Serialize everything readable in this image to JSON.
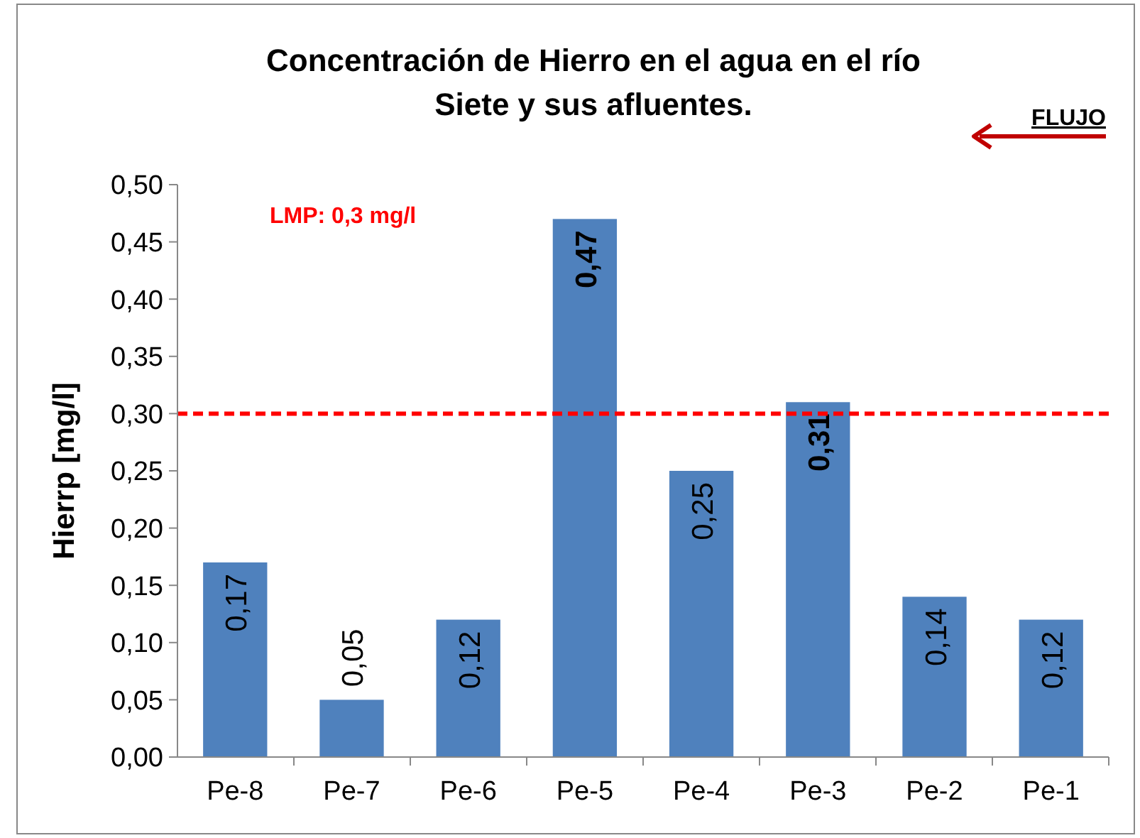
{
  "chart_data": {
    "type": "bar",
    "title": "Concentración de Hierro en el agua en el río Siete y sus afluentes.",
    "ylabel": "Hierrp  [mg/l]",
    "categories": [
      "Pe-8",
      "Pe-7",
      "Pe-6",
      "Pe-5",
      "Pe-4",
      "Pe-3",
      "Pe-2",
      "Pe-1"
    ],
    "values": [
      0.17,
      0.05,
      0.12,
      0.47,
      0.25,
      0.31,
      0.14,
      0.12
    ],
    "color": "#4f81bd",
    "value_labels": [
      "0,17",
      "0,05",
      "0,12",
      "0,47",
      "0,25",
      "0,31",
      "0,14",
      "0,12"
    ],
    "ylim": [
      0,
      0.5
    ],
    "yticks": [
      {
        "value": 0,
        "label": "0,00"
      },
      {
        "value": 0.05,
        "label": "0,05"
      },
      {
        "value": 0.1,
        "label": "0,10"
      },
      {
        "value": 0.15,
        "label": "0,15"
      },
      {
        "value": 0.2,
        "label": "0,20"
      },
      {
        "value": 0.25,
        "label": "0,25"
      },
      {
        "value": 0.3,
        "label": "0,30"
      },
      {
        "value": 0.35,
        "label": "0,35"
      },
      {
        "value": 0.4,
        "label": "0,40"
      },
      {
        "value": 0.45,
        "label": "0,45"
      },
      {
        "value": 0.5,
        "label": "0,50"
      }
    ],
    "ref_lines": [
      {
        "axis": "y",
        "value": 0.3,
        "label": "LMP: 0,3 mg/l",
        "color": "#ff0000",
        "line_style": "dashed"
      }
    ],
    "annotations": [
      "FLUJO"
    ],
    "grid": false
  }
}
